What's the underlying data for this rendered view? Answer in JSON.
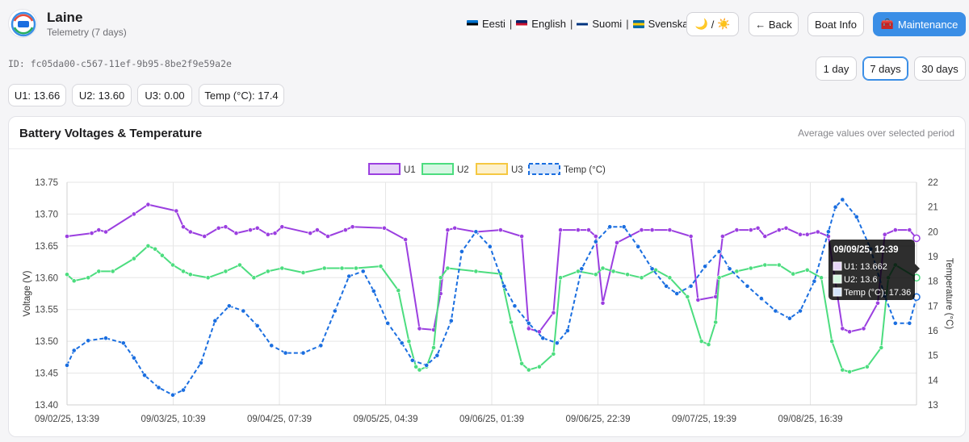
{
  "header": {
    "boat_name": "Laine",
    "subtitle": "Telemetry (7 days)"
  },
  "languages": [
    {
      "label": "Eesti",
      "flag": [
        "#0072ce",
        "#000000",
        "#ffffff"
      ]
    },
    {
      "label": "English",
      "flag": [
        "#012169",
        "#c8102e",
        "#ffffff"
      ]
    },
    {
      "label": "Suomi",
      "flag": [
        "#ffffff",
        "#003580",
        "#ffffff"
      ]
    },
    {
      "label": "Svenska",
      "flag": [
        "#006aa7",
        "#fecc00",
        "#006aa7"
      ]
    }
  ],
  "language_separator": "|",
  "theme_toggle": {
    "moon": "🌙",
    "slash": "/",
    "sun": "☀️"
  },
  "nav": {
    "back_label": "← Back",
    "boat_info_label": "Boat Info",
    "maintenance_icon": "🧰",
    "maintenance_label": "Maintenance"
  },
  "device_id": "ID: fc05da00-c567-11ef-9b95-8be2f9e59a2e",
  "ranges": [
    {
      "label": "1 day",
      "active": false
    },
    {
      "label": "7 days",
      "active": true
    },
    {
      "label": "30 days",
      "active": false
    }
  ],
  "current_values": [
    {
      "label": "U1: 13.66"
    },
    {
      "label": "U2: 13.60"
    },
    {
      "label": "U3: 0.00"
    },
    {
      "label": "Temp (°C): 17.4"
    }
  ],
  "card": {
    "title": "Battery Voltages & Temperature",
    "note": "Average values over selected period"
  },
  "colors": {
    "u1": "#9b3fe0",
    "u2": "#4cdd7f",
    "u3": "#f5c842",
    "temp": "#1a6ee0",
    "accent": "#3a8ee6"
  },
  "chart_data": {
    "type": "line",
    "xlabel": "",
    "ylabel": "Voltage (V)",
    "y2label": "Temperature (°C)",
    "ylim": [
      13.4,
      13.75
    ],
    "y2lim": [
      13,
      22
    ],
    "yticks": [
      "13.40",
      "13.45",
      "13.50",
      "13.55",
      "13.60",
      "13.65",
      "13.70",
      "13.75"
    ],
    "y2ticks": [
      "13",
      "14",
      "15",
      "16",
      "17",
      "18",
      "19",
      "20",
      "21",
      "22"
    ],
    "xticks": [
      "09/02/25, 13:39",
      "09/03/25, 10:39",
      "09/04/25, 07:39",
      "09/05/25, 04:39",
      "09/06/25, 01:39",
      "09/06/25, 22:39",
      "09/07/25, 19:39",
      "09/08/25, 16:39"
    ],
    "legend_position": "top",
    "grid": true,
    "series": [
      {
        "name": "U1",
        "axis": "left",
        "style": "solid",
        "x": [
          0,
          7,
          9,
          11,
          19,
          23,
          31,
          33,
          35,
          39,
          43,
          45,
          48,
          52,
          54,
          57,
          59,
          61,
          69,
          71,
          74,
          79,
          81,
          90,
          96,
          100,
          104,
          106,
          108,
          110,
          116,
          123,
          129,
          131,
          134,
          138,
          140,
          145,
          148,
          150,
          152,
          156,
          163,
          166,
          171,
          177,
          179,
          184,
          186,
          190,
          194,
          196,
          198,
          202,
          204,
          208,
          210,
          213,
          216,
          220,
          222,
          226,
          230,
          232,
          235,
          239,
          241
        ],
        "y": [
          13.665,
          13.67,
          13.675,
          13.672,
          13.7,
          13.715,
          13.705,
          13.68,
          13.672,
          13.665,
          13.678,
          13.68,
          13.67,
          13.675,
          13.678,
          13.668,
          13.67,
          13.68,
          13.67,
          13.675,
          13.665,
          13.675,
          13.68,
          13.678,
          13.66,
          13.52,
          13.518,
          13.575,
          13.675,
          13.678,
          13.672,
          13.675,
          13.665,
          13.52,
          13.515,
          13.545,
          13.675,
          13.675,
          13.675,
          13.665,
          13.56,
          13.655,
          13.675,
          13.675,
          13.675,
          13.665,
          13.565,
          13.57,
          13.665,
          13.675,
          13.675,
          13.678,
          13.665,
          13.675,
          13.678,
          13.668,
          13.668,
          13.672,
          13.665,
          13.52,
          13.515,
          13.52,
          13.56,
          13.668,
          13.675,
          13.675,
          13.662
        ]
      },
      {
        "name": "U2",
        "axis": "left",
        "style": "solid",
        "x": [
          0,
          2,
          6,
          9,
          13,
          19,
          23,
          25,
          27,
          30,
          33,
          35,
          40,
          45,
          49,
          53,
          57,
          61,
          67,
          73,
          78,
          82,
          89,
          94,
          97,
          99,
          100,
          102,
          104,
          106,
          108,
          116,
          123,
          126,
          129,
          131,
          134,
          138,
          140,
          145,
          150,
          152,
          155,
          159,
          163,
          167,
          171,
          176,
          180,
          182,
          184,
          185,
          190,
          194,
          198,
          202,
          206,
          210,
          214,
          217,
          220,
          222,
          227,
          231,
          233,
          235,
          241
        ],
        "y": [
          13.605,
          13.595,
          13.6,
          13.61,
          13.61,
          13.63,
          13.65,
          13.645,
          13.635,
          13.62,
          13.61,
          13.605,
          13.6,
          13.61,
          13.62,
          13.6,
          13.61,
          13.615,
          13.608,
          13.615,
          13.615,
          13.615,
          13.618,
          13.58,
          13.5,
          13.46,
          13.455,
          13.46,
          13.49,
          13.6,
          13.615,
          13.61,
          13.606,
          13.53,
          13.465,
          13.455,
          13.46,
          13.48,
          13.6,
          13.61,
          13.605,
          13.615,
          13.61,
          13.605,
          13.6,
          13.612,
          13.6,
          13.57,
          13.5,
          13.495,
          13.53,
          13.6,
          13.61,
          13.615,
          13.62,
          13.62,
          13.606,
          13.612,
          13.6,
          13.5,
          13.455,
          13.452,
          13.46,
          13.49,
          13.6,
          13.62,
          13.6
        ]
      },
      {
        "name": "U3",
        "axis": "left",
        "style": "solid",
        "x": [],
        "y": []
      },
      {
        "name": "Temp (°C)",
        "axis": "right",
        "style": "dashed",
        "x": [
          0,
          2,
          6,
          11,
          16,
          19,
          22,
          26,
          30,
          33,
          38,
          42,
          46,
          50,
          54,
          58,
          62,
          67,
          72,
          76,
          80,
          84,
          87,
          91,
          95,
          98,
          102,
          105,
          109,
          112,
          116,
          120,
          124,
          127,
          131,
          135,
          139,
          142,
          146,
          150,
          154,
          158,
          162,
          166,
          170,
          173,
          177,
          181,
          185,
          188,
          193,
          197,
          201,
          205,
          208,
          212,
          216,
          218,
          220,
          224,
          228,
          232,
          235,
          239,
          241
        ],
        "y": [
          14.6,
          15.2,
          15.6,
          15.7,
          15.5,
          14.9,
          14.2,
          13.7,
          13.4,
          13.6,
          14.7,
          16.4,
          17.0,
          16.8,
          16.2,
          15.4,
          15.1,
          15.1,
          15.4,
          16.8,
          18.2,
          18.4,
          17.6,
          16.3,
          15.5,
          14.8,
          14.6,
          15.0,
          16.4,
          19.2,
          20.0,
          19.4,
          17.8,
          17.0,
          16.3,
          15.7,
          15.5,
          16.0,
          18.5,
          19.6,
          20.2,
          20.2,
          19.4,
          18.5,
          17.8,
          17.5,
          17.8,
          18.6,
          19.2,
          18.5,
          17.8,
          17.3,
          16.8,
          16.5,
          16.8,
          18.0,
          20.0,
          21.0,
          21.3,
          20.6,
          19.3,
          17.4,
          16.3,
          16.3,
          17.36
        ]
      }
    ],
    "tooltip": {
      "title": "09/09/25, 12:39",
      "lines": [
        "U1: 13.662",
        "U2: 13.6",
        "Temp (°C): 17.36"
      ]
    }
  }
}
